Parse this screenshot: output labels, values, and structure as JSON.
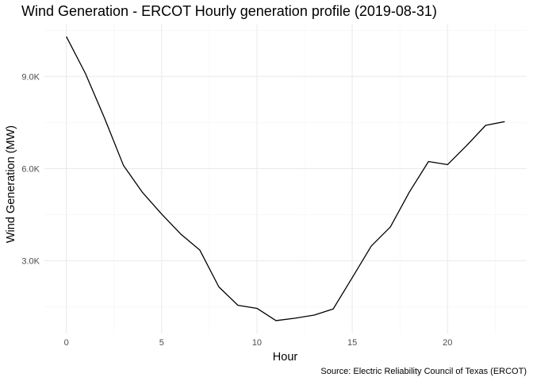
{
  "chart_data": {
    "type": "line",
    "title": "Wind Generation - ERCOT Hourly generation profile (2019-08-31)",
    "xlabel": "Hour",
    "ylabel": "Wind Generation (MW)",
    "caption": "Source: Electric Reliability Council of Texas (ERCOT)",
    "x": [
      0,
      1,
      2,
      3,
      4,
      5,
      6,
      7,
      8,
      9,
      10,
      11,
      12,
      13,
      14,
      15,
      16,
      17,
      18,
      19,
      20,
      21,
      22,
      23
    ],
    "series": [
      {
        "values": [
          10300,
          9100,
          7650,
          6100,
          5220,
          4520,
          3870,
          3350,
          2150,
          1550,
          1450,
          1050,
          1130,
          1230,
          1430,
          2450,
          3480,
          4100,
          5240,
          6230,
          6130,
          6750,
          7410,
          7530
        ]
      }
    ],
    "x_ticks": [
      0,
      5,
      10,
      15,
      20
    ],
    "x_tick_labels": [
      "0",
      "5",
      "10",
      "15",
      "20"
    ],
    "y_ticks": [
      3000,
      6000,
      9000
    ],
    "y_tick_labels": [
      "3.0K",
      "6.0K",
      "9.0K"
    ],
    "xlim": [
      -1.15,
      24.15
    ],
    "ylim": [
      635,
      10715
    ],
    "grid": true,
    "line_color": "#000000"
  }
}
